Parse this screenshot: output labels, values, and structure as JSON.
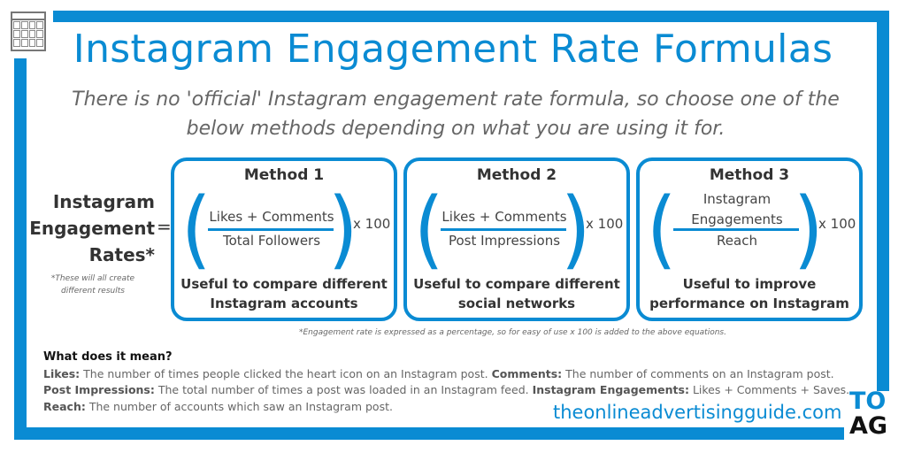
{
  "title": "Instagram Engagement Rate Formulas",
  "subtitle": "There is no 'official' Instagram engagement rate formula, so choose one of the below methods depending on what you are using it for.",
  "lhs": {
    "line1": "Instagram",
    "line2": "Engagement",
    "line3": "Rates*",
    "equals": "=",
    "note": "*These will all create different results"
  },
  "methods": [
    {
      "title": "Method 1",
      "numerator": "Likes + Comments",
      "denominator": "Total Followers",
      "multiplier": "x 100",
      "use": "Useful to compare different Instagram accounts"
    },
    {
      "title": "Method 2",
      "numerator": "Likes + Comments",
      "denominator": "Post Impressions",
      "multiplier": "x 100",
      "use": "Useful to compare different social networks"
    },
    {
      "title": "Method 3",
      "numerator": "Instagram Engagements",
      "denominator": "Reach",
      "multiplier": "x 100",
      "use": "Useful to improve performance on Instagram"
    }
  ],
  "footnote": "*Engagement rate is expressed as a percentage, so for easy of use x 100 is added to the above equations.",
  "definitions": {
    "heading": "What does it mean?",
    "likes_term": "Likes:",
    "likes": " The number of times people clicked the heart icon on an Instagram post. ",
    "comments_term": "Comments:",
    "comments": " The number of comments on an Instagram post.",
    "impressions_term": "Post Impressions:",
    "impressions": " The total number of times a post was loaded in an Instagram feed. ",
    "engagements_term": "Instagram Engagements:",
    "engagements": " Likes + Comments + Saves.",
    "reach_term": "Reach:",
    "reach": " The number of accounts which saw an Instagram post."
  },
  "url": "theonlineadvertisingguide.com",
  "logo": {
    "top": "TO",
    "bottom": "AG"
  },
  "colors": {
    "accent": "#0a8bd3"
  }
}
